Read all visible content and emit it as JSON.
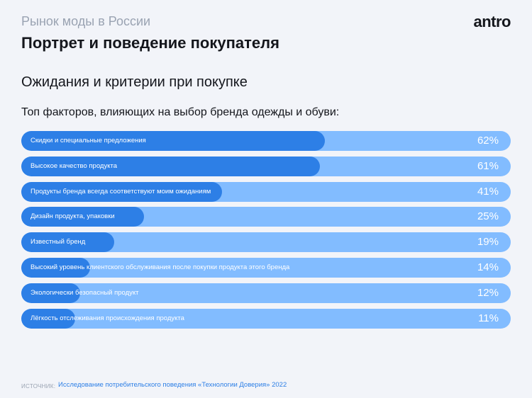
{
  "header": {
    "supertitle": "Рынок моды в России",
    "title": "Портрет и поведение покупателя",
    "logo": "antro"
  },
  "subtitle": "Ожидания и критерии при покупке",
  "colors": {
    "background": "#f2f4f9",
    "bar_track": "#82bcff",
    "bar_fill": "#2d7fe6",
    "text_dark": "#14161c",
    "text_muted": "#9aa3b2"
  },
  "chart_data": {
    "type": "bar",
    "orientation": "horizontal",
    "title": "Топ факторов, влияющих на выбор бренда одежды и обуви:",
    "categories": [
      "Скидки и специальные предложения",
      "Высокое качество продукта",
      "Продукты бренда всегда соответствуют моим ожиданиям",
      "Дизайн продукта, упаковки",
      "Известный бренд",
      "Высокий уровень клиентского обслуживания после покупки продукта этого бренда",
      "Экологически безопасный продукт",
      "Лёгкость отслеживания происхождения продукта"
    ],
    "values": [
      62,
      61,
      41,
      25,
      19,
      14,
      12,
      11
    ],
    "value_labels": [
      "62%",
      "61%",
      "41%",
      "25%",
      "19%",
      "14%",
      "12%",
      "11%"
    ],
    "unit": "%",
    "xlim": [
      0,
      100
    ],
    "grid": false,
    "legend": "none"
  },
  "footer": {
    "source_label": "ИСТОЧНИК:",
    "source_text": "Исследование потребительского поведения «Технологии Доверия» 2022"
  }
}
